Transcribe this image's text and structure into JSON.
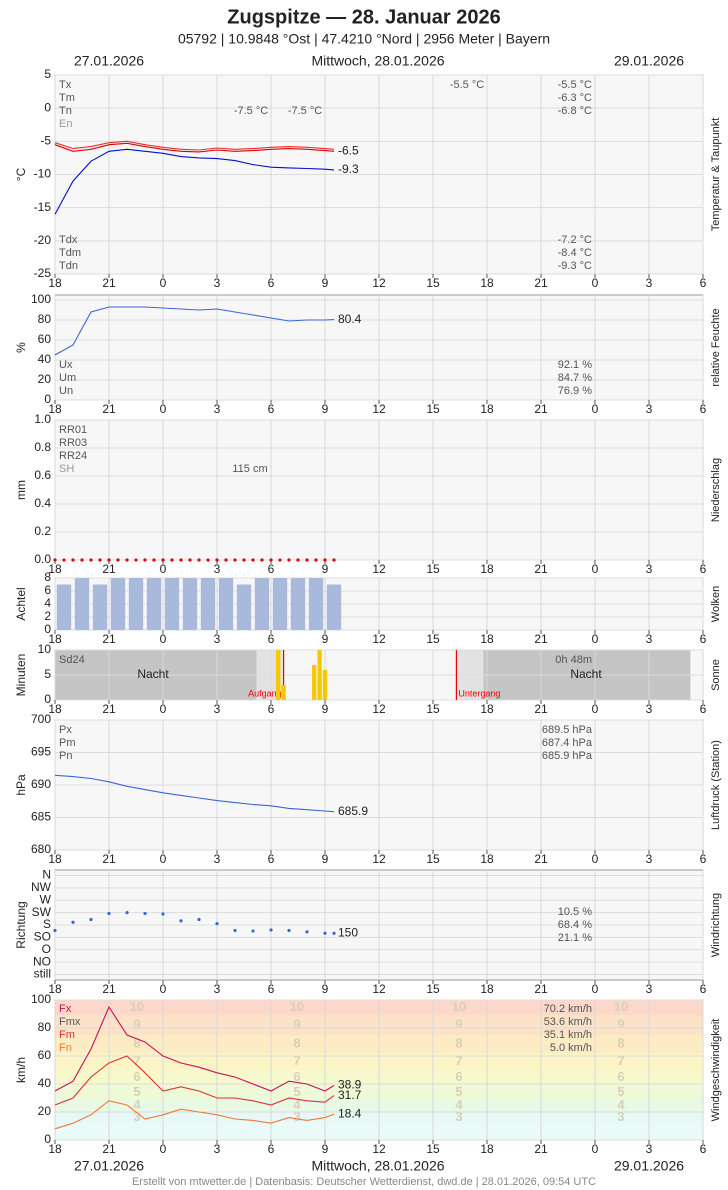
{
  "header": {
    "title": "Zugspitze  —  28. Januar 2026",
    "subtitle": "05792  |  10.9848 °Ost  |  47.4210 °Nord  |  2956 Meter  |  Bayern",
    "dates": [
      "27.01.2026",
      "Mittwoch, 28.01.2026",
      "29.01.2026"
    ],
    "footer": "Erstellt von mtwetter.de | Datenbasis: Deutscher Wetterdienst, dwd.de | 28.01.2026, 09:54 UTC"
  },
  "time_axis": {
    "xlim": [
      18,
      54
    ],
    "xticks": [
      18,
      21,
      {
        "value": 24,
        "label": "0"
      },
      {
        "value": 27,
        "label": "3"
      },
      {
        "value": 30,
        "label": "6"
      },
      {
        "value": 33,
        "label": "9"
      },
      {
        "value": 36,
        "label": "12"
      },
      {
        "value": 39,
        "label": "15"
      },
      {
        "value": 42,
        "label": "18"
      },
      {
        "value": 45,
        "label": "21"
      },
      {
        "value": 48,
        "label": "0"
      },
      {
        "value": 51,
        "label": "3"
      },
      {
        "value": 54,
        "label": "6"
      }
    ]
  },
  "chart_data": [
    {
      "type": "line",
      "title": "Temperatur & Taupunkt",
      "ylabel": "°C",
      "ylim": [
        -25,
        5
      ],
      "yticks": [
        -25,
        -20,
        -15,
        -10,
        -5,
        0,
        5
      ],
      "x": [
        18,
        19,
        20,
        21,
        22,
        23,
        24,
        25,
        26,
        27,
        28,
        29,
        30,
        31,
        32,
        33,
        33.5
      ],
      "series": [
        {
          "color": "#e83030",
          "values": [
            -5.2,
            -6.1,
            -5.8,
            -5.2,
            -5.0,
            -5.5,
            -5.9,
            -6.2,
            -6.3,
            -6.0,
            -6.2,
            -6.1,
            -5.9,
            -5.8,
            -5.9,
            -6.1,
            -6.2
          ]
        },
        {
          "color": "#e00000",
          "values": [
            -5.5,
            -6.5,
            -6.2,
            -5.5,
            -5.3,
            -5.8,
            -6.2,
            -6.5,
            -6.6,
            -6.3,
            -6.5,
            -6.4,
            -6.2,
            -6.1,
            -6.2,
            -6.4,
            -6.5
          ],
          "end_label": true
        },
        {
          "color": "#0010d0",
          "values": [
            -16,
            -11,
            -8,
            -6.5,
            -6.2,
            -6.5,
            -6.8,
            -7.3,
            -7.5,
            -7.6,
            -7.9,
            -8.5,
            -8.9,
            -9.0,
            -9.1,
            -9.2,
            -9.3
          ],
          "end_label": true
        }
      ],
      "stats": [
        {
          "labels": [
            "Tx",
            "Tm",
            "Tn",
            "En"
          ],
          "values": [
            "-5.5 °C",
            "-6.3 °C",
            "-6.8 °C"
          ]
        },
        {
          "labels": [
            "Tdx",
            "Tdm",
            "Tdn"
          ],
          "values": [
            "-7.2 °C",
            "-8.4 °C",
            "-9.3 °C"
          ]
        }
      ],
      "notes": [
        "-7.5 °C",
        "-7.5 °C",
        "-5.5 °C"
      ]
    },
    {
      "type": "line",
      "title": "relative Feuchte",
      "ylabel": "%",
      "ylim": [
        0,
        105
      ],
      "yticks": [
        0,
        20,
        40,
        60,
        80,
        100
      ],
      "x": [
        18,
        19,
        20,
        21,
        22,
        23,
        24,
        25,
        26,
        27,
        28,
        29,
        30,
        31,
        32,
        33,
        33.5
      ],
      "series": [
        {
          "color": "#3a66d8",
          "values": [
            45,
            55,
            88,
            93,
            93,
            93,
            92,
            91,
            90,
            91,
            88,
            85,
            82,
            79,
            80,
            80,
            80.4
          ],
          "end_label": true
        }
      ],
      "stats": [
        {
          "labels": [
            "Ux",
            "Um",
            "Un"
          ],
          "values": [
            "92.1 %",
            "84.7 %",
            "76.9 %"
          ]
        }
      ]
    },
    {
      "type": "line",
      "title": "Niederschlag",
      "ylabel": "mm",
      "ylim": [
        0,
        1
      ],
      "yticks": [
        {
          "value": 0,
          "label": "0.0"
        },
        0.2,
        0.4,
        0.6,
        0.8,
        {
          "value": 1,
          "label": "1.0"
        }
      ],
      "x": [
        18,
        18.5,
        19,
        19.5,
        20,
        20.5,
        21,
        21.5,
        22,
        22.5,
        23,
        23.5,
        24,
        24.5,
        25,
        25.5,
        26,
        26.5,
        27,
        27.5,
        28,
        28.5,
        29,
        29.5,
        30,
        30.5,
        31,
        31.5,
        32,
        32.5,
        33,
        33.5
      ],
      "series": [
        {
          "color": "#e00000",
          "marker": "dot",
          "values": [
            0,
            0,
            0,
            0,
            0,
            0,
            0,
            0,
            0,
            0,
            0,
            0,
            0,
            0,
            0,
            0,
            0,
            0,
            0,
            0,
            0,
            0,
            0,
            0,
            0,
            0,
            0,
            0,
            0,
            0,
            0,
            0
          ]
        }
      ],
      "stats": [
        {
          "labels": [
            "RR01",
            "RR03",
            "RR24",
            "SH"
          ],
          "values": []
        }
      ],
      "notes": [
        "115 cm"
      ]
    },
    {
      "type": "bar",
      "title": "Wolken",
      "ylabel": "Achtel",
      "ylim": [
        0,
        8
      ],
      "yticks": [
        0,
        2,
        4,
        6,
        8
      ],
      "x": [
        18.5,
        19.5,
        20.5,
        21.5,
        22.5,
        23.5,
        24.5,
        25.5,
        26.5,
        27.5,
        28.5,
        29.5,
        30.5,
        31.5,
        32.5,
        33.5
      ],
      "series": [
        {
          "color": "#a9b9db",
          "values": [
            7,
            8,
            7,
            8,
            8,
            8,
            8,
            8,
            8,
            8,
            7,
            8,
            8,
            8,
            8,
            7
          ]
        }
      ]
    },
    {
      "type": "bar",
      "title": "Sonne",
      "ylabel": "Minuten",
      "ylim": [
        0,
        10
      ],
      "yticks": [
        0,
        5,
        10
      ],
      "x": [
        30.4,
        30.7,
        32.4,
        32.7,
        33.0
      ],
      "series": [
        {
          "color": "#f5c800",
          "values": [
            10,
            3,
            7,
            10,
            6
          ]
        }
      ],
      "stats": [
        {
          "labels": [
            "Sd24"
          ],
          "values": [
            "0h 48m"
          ]
        }
      ],
      "notes": [
        "Nacht",
        "Nacht"
      ],
      "events": [
        {
          "label": "Aufgang",
          "x": 30.7
        },
        {
          "label": "Untergang",
          "x": 40.3
        }
      ]
    },
    {
      "type": "line",
      "title": "Luftdruck (Station)",
      "ylabel": "hPa",
      "ylim": [
        680,
        700
      ],
      "yticks": [
        680,
        685,
        690,
        695,
        700
      ],
      "x": [
        18,
        19,
        20,
        21,
        22,
        23,
        24,
        25,
        26,
        27,
        28,
        29,
        30,
        31,
        32,
        33,
        33.5
      ],
      "series": [
        {
          "color": "#3a66d8",
          "values": [
            691.5,
            691.3,
            691.0,
            690.5,
            689.8,
            689.3,
            688.8,
            688.4,
            688.0,
            687.6,
            687.3,
            687.0,
            686.8,
            686.4,
            686.2,
            686.0,
            685.9
          ],
          "end_label": true
        }
      ],
      "stats": [
        {
          "labels": [
            "Px",
            "Pm",
            "Pn"
          ],
          "values": [
            "689.5 hPa",
            "687.4 hPa",
            "685.9 hPa"
          ]
        }
      ]
    },
    {
      "type": "scatter",
      "title": "Windrichtung",
      "ylabel": "Richtung",
      "ylim": [
        -20,
        380
      ],
      "yticks": [
        {
          "value": 0,
          "label": "still"
        },
        {
          "value": 45,
          "label": "NO"
        },
        {
          "value": 90,
          "label": "O"
        },
        {
          "value": 135,
          "label": "SO"
        },
        {
          "value": 180,
          "label": "S"
        },
        {
          "value": 225,
          "label": "SW"
        },
        {
          "value": 270,
          "label": "W"
        },
        {
          "value": 315,
          "label": "NW"
        },
        {
          "value": 360,
          "label": "N"
        }
      ],
      "x": [
        18,
        19,
        20,
        21,
        22,
        23,
        24,
        25,
        26,
        27,
        28,
        29,
        30,
        31,
        32,
        33,
        33.5
      ],
      "series": [
        {
          "color": "#3a66d8",
          "values": [
            160,
            190,
            200,
            222,
            225,
            222,
            220,
            195,
            200,
            185,
            160,
            158,
            162,
            160,
            155,
            150,
            150
          ],
          "end_label": true
        }
      ],
      "stats": [
        {
          "labels": [],
          "values": [
            "10.5 %",
            "68.4 %",
            "21.1 %"
          ]
        }
      ]
    },
    {
      "type": "line",
      "title": "Windgeschwindigkeit",
      "ylabel": "km/h",
      "ylim": [
        0,
        100
      ],
      "yticks": [
        0,
        20,
        40,
        60,
        80,
        100
      ],
      "x": [
        18,
        19,
        20,
        21,
        22,
        23,
        24,
        25,
        26,
        27,
        28,
        29,
        30,
        31,
        32,
        33,
        33.5
      ],
      "series": [
        {
          "color": "#c8105a",
          "values": [
            35,
            42,
            65,
            95,
            75,
            70,
            60,
            55,
            52,
            48,
            45,
            40,
            35,
            42,
            40,
            35,
            38.9
          ],
          "end_label": true
        },
        {
          "color": "#e03030",
          "values": [
            25,
            30,
            45,
            55,
            60,
            48,
            35,
            38,
            35,
            30,
            30,
            28,
            25,
            30,
            28,
            27,
            31.7
          ],
          "end_label": true
        },
        {
          "color": "#f07838",
          "values": [
            8,
            12,
            18,
            28,
            25,
            15,
            18,
            22,
            20,
            18,
            15,
            14,
            12,
            16,
            14,
            16,
            18.4
          ],
          "end_label": true
        }
      ],
      "stats": [
        {
          "labels": [
            "Fx",
            "Fmx",
            "Fm",
            "Fn"
          ],
          "colors": [
            "#c8105a",
            "#555555",
            "#e03030",
            "#f07838"
          ],
          "values": [
            "70.2 km/h",
            "53.6 km/h",
            "35.1 km/h",
            "5.0 km/h"
          ]
        }
      ],
      "beaufort": {
        "levels": [
          3,
          4,
          5,
          6,
          7,
          8,
          9,
          10
        ],
        "lower_kmh": [
          12,
          20,
          29,
          39,
          50,
          62,
          75,
          89
        ]
      }
    }
  ]
}
